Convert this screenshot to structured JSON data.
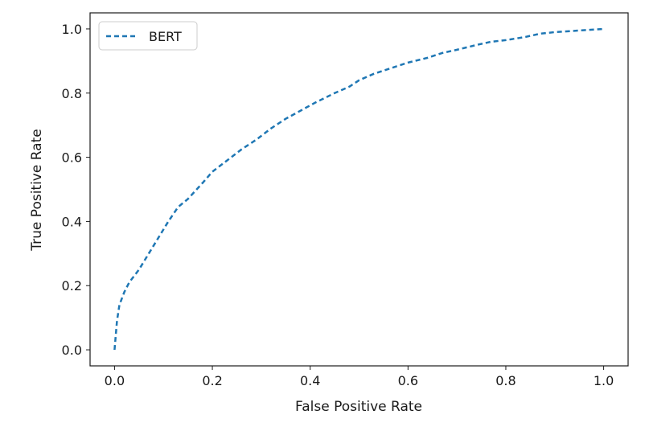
{
  "chart_data": {
    "type": "line",
    "title": "",
    "xlabel": "False Positive Rate",
    "ylabel": "True Positive Rate",
    "xlim": [
      -0.05,
      1.05
    ],
    "ylim": [
      -0.05,
      1.05
    ],
    "xticks": [
      "0.0",
      "0.2",
      "0.4",
      "0.6",
      "0.8",
      "1.0"
    ],
    "yticks": [
      "0.0",
      "0.2",
      "0.4",
      "0.6",
      "0.8",
      "1.0"
    ],
    "grid": false,
    "legend_position": "top-left",
    "series": [
      {
        "name": "BERT",
        "color": "#1f77b4",
        "line_style": "dashed",
        "x": [
          0.0,
          0.005,
          0.01,
          0.02,
          0.03,
          0.05,
          0.07,
          0.09,
          0.11,
          0.13,
          0.15,
          0.18,
          0.2,
          0.23,
          0.26,
          0.29,
          0.32,
          0.35,
          0.38,
          0.41,
          0.45,
          0.48,
          0.5,
          0.53,
          0.56,
          0.6,
          0.64,
          0.67,
          0.7,
          0.74,
          0.77,
          0.8,
          0.84,
          0.87,
          0.9,
          0.94,
          0.97,
          1.0
        ],
        "y": [
          0.0,
          0.09,
          0.14,
          0.18,
          0.21,
          0.25,
          0.3,
          0.35,
          0.4,
          0.445,
          0.47,
          0.52,
          0.555,
          0.59,
          0.625,
          0.655,
          0.69,
          0.72,
          0.745,
          0.77,
          0.8,
          0.82,
          0.84,
          0.86,
          0.875,
          0.895,
          0.91,
          0.925,
          0.935,
          0.95,
          0.96,
          0.965,
          0.975,
          0.985,
          0.99,
          0.994,
          0.997,
          1.0
        ]
      }
    ]
  }
}
